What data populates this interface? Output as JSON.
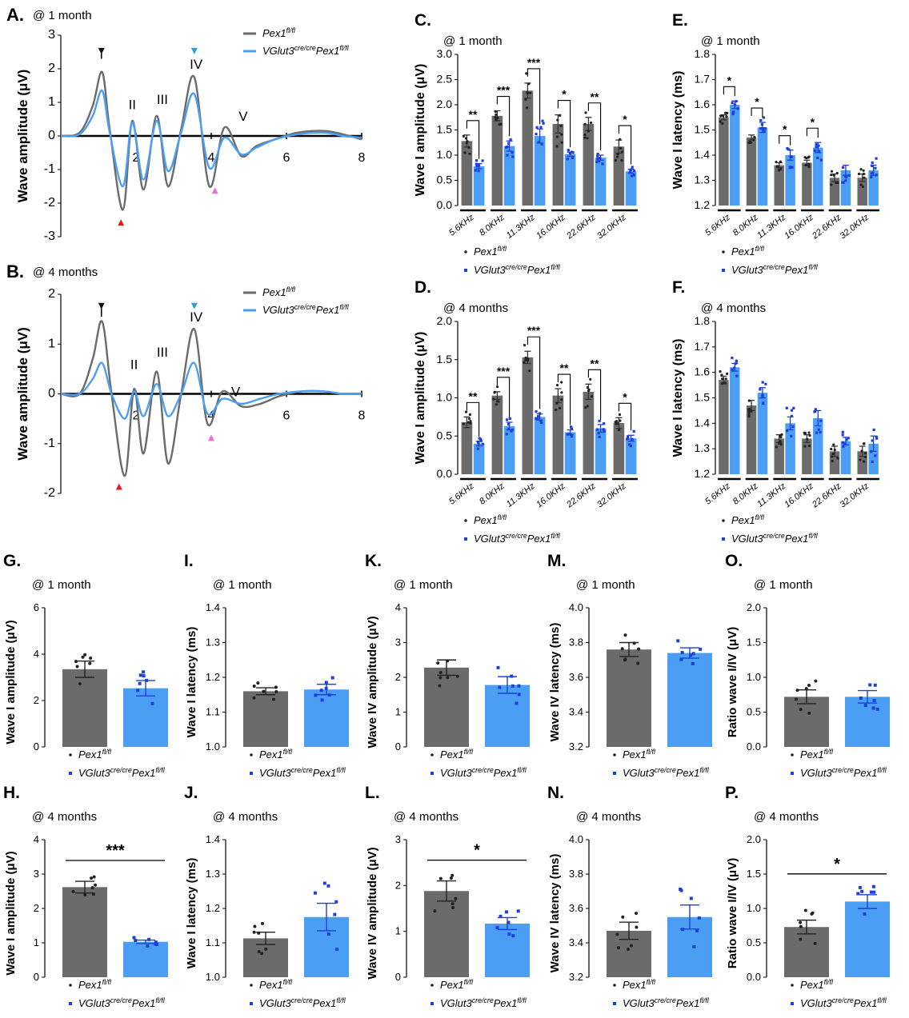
{
  "colors": {
    "control": "#6b6b6b",
    "mutant": "#4a9ff5",
    "mutant_dot": "#1f3fd8",
    "dot": "#222222",
    "red_marker": "#e01b1b",
    "pink_marker": "#e36fe0",
    "blue_marker": "#2ea0d8"
  },
  "legend": {
    "control_name": "Pex1",
    "control_sup": "fl/fl",
    "mutant_a": "VGlut3",
    "mutant_sup1": "cre/cre",
    "mutant_b": "Pex1",
    "mutant_sup2": "fl/fl"
  },
  "chart_data": [
    {
      "id": "A",
      "type": "line",
      "panel_label": "A.",
      "title": "@ 1 month",
      "ylabel": "Wave amplitude (μV)",
      "xlim": [
        0,
        8
      ],
      "ylim": [
        -3,
        3
      ],
      "xticks": [
        "2",
        "4",
        "6",
        "8"
      ],
      "yticks": [
        "-3",
        "-2",
        "-1",
        "0",
        "1",
        "2",
        "3"
      ],
      "peak_labels": [
        "I",
        "II",
        "III",
        "IV",
        "V"
      ],
      "series": [
        {
          "name": "Pex1 fl/fl",
          "x": [
            0,
            0.5,
            0.85,
            1.1,
            1.3,
            1.65,
            1.9,
            2.2,
            2.55,
            2.85,
            3.2,
            3.55,
            3.95,
            4.35,
            4.8,
            5.2,
            5.7,
            6.3,
            7.0,
            7.5,
            8
          ],
          "y": [
            0,
            0.1,
            0.9,
            1.9,
            0.2,
            -2.2,
            0.45,
            -1.6,
            0.6,
            -1.5,
            0.2,
            1.75,
            -1.5,
            0.25,
            -0.6,
            -0.3,
            -0.1,
            0.1,
            0.15,
            0.05,
            -0.1
          ]
        },
        {
          "name": "VGlut3 cre/cre Pex1 fl/fl",
          "x": [
            0,
            0.5,
            0.85,
            1.1,
            1.3,
            1.65,
            1.9,
            2.2,
            2.55,
            2.85,
            3.2,
            3.55,
            3.95,
            4.35,
            4.8,
            5.2,
            5.7,
            6.3,
            7.0,
            7.5,
            8
          ],
          "y": [
            0,
            0.05,
            0.6,
            1.35,
            0.1,
            -1.5,
            0.4,
            -1.3,
            0.45,
            -1.05,
            0.1,
            1.25,
            -0.95,
            -0.05,
            -0.55,
            -0.35,
            -0.1,
            0.05,
            0.1,
            0.0,
            -0.05
          ]
        }
      ]
    },
    {
      "id": "B",
      "type": "line",
      "panel_label": "B.",
      "title": "@ 4 months",
      "ylabel": "Wave amplitude (μV)",
      "xlim": [
        0,
        8
      ],
      "ylim": [
        -2,
        2
      ],
      "xticks": [
        "2",
        "4",
        "6",
        "8"
      ],
      "yticks": [
        "-2",
        "-1",
        "0",
        "1",
        "2"
      ],
      "peak_labels": [
        "I",
        "II",
        "III",
        "IV",
        "V"
      ],
      "series": [
        {
          "name": "Pex1 fl/fl",
          "x": [
            0,
            0.5,
            0.85,
            1.1,
            1.35,
            1.7,
            1.95,
            2.2,
            2.55,
            2.85,
            3.2,
            3.55,
            3.9,
            4.3,
            4.8,
            5.3,
            5.8,
            6.4,
            7.0,
            7.5,
            8
          ],
          "y": [
            0,
            0.0,
            0.7,
            1.45,
            0.0,
            -1.65,
            0.1,
            -1.2,
            0.45,
            -1.4,
            0.0,
            1.3,
            -0.6,
            0.05,
            -0.25,
            -0.2,
            -0.05,
            0.05,
            0.05,
            0.0,
            0.0
          ]
        },
        {
          "name": "VGlut3 cre/cre Pex1 fl/fl",
          "x": [
            0,
            0.5,
            0.85,
            1.1,
            1.35,
            1.7,
            1.95,
            2.2,
            2.55,
            2.85,
            3.2,
            3.55,
            3.9,
            4.3,
            4.8,
            5.3,
            5.8,
            6.4,
            7.0,
            7.5,
            8
          ],
          "y": [
            0,
            0.0,
            0.3,
            0.62,
            0.0,
            -0.5,
            0.05,
            -0.45,
            0.2,
            -0.45,
            0.0,
            0.62,
            -0.4,
            -0.1,
            -0.2,
            -0.1,
            0.0,
            0.05,
            0.05,
            0.0,
            0.0
          ]
        }
      ]
    },
    {
      "id": "C",
      "type": "bar",
      "panel_label": "C.",
      "title": "@ 1 month",
      "ylabel": "Wave I amplitude (μV)",
      "ylim": [
        0,
        3
      ],
      "yticks": [
        "0.0",
        "0.5",
        "1.0",
        "1.5",
        "2.0",
        "2.5",
        "3.0"
      ],
      "categories": [
        "5.6KHz",
        "8.0KHz",
        "11.3KHz",
        "16.0KHz",
        "22.6KHz",
        "32.0KHz"
      ],
      "series": [
        {
          "name": "Pex1 fl/fl",
          "values": [
            1.28,
            1.78,
            2.28,
            1.62,
            1.62,
            1.17
          ],
          "errors": [
            0.12,
            0.1,
            0.15,
            0.18,
            0.13,
            0.13
          ]
        },
        {
          "name": "VGlut3 cre/cre Pex1 fl/fl",
          "values": [
            0.78,
            1.18,
            1.38,
            1.02,
            0.95,
            0.68
          ],
          "errors": [
            0.05,
            0.1,
            0.14,
            0.04,
            0.05,
            0.04
          ]
        }
      ],
      "significance": [
        "**",
        "***",
        "***",
        "*",
        "**",
        "*"
      ]
    },
    {
      "id": "D",
      "type": "bar",
      "panel_label": "D.",
      "title": "@ 4 months",
      "ylabel": "Wave I amplitude (μV)",
      "ylim": [
        0,
        2
      ],
      "yticks": [
        "0.0",
        "0.5",
        "1.0",
        "1.5",
        "2.0"
      ],
      "categories": [
        "5.6KHz",
        "8.0KHz",
        "11.3KHz",
        "16.0KHz",
        "22.6KHz",
        "32.0KHz"
      ],
      "series": [
        {
          "name": "Pex1 fl/fl",
          "values": [
            0.68,
            1.03,
            1.53,
            1.03,
            1.08,
            0.67
          ],
          "errors": [
            0.07,
            0.05,
            0.08,
            0.09,
            0.1,
            0.07
          ]
        },
        {
          "name": "VGlut3 cre/cre Pex1 fl/fl",
          "values": [
            0.4,
            0.63,
            0.75,
            0.55,
            0.6,
            0.47
          ],
          "errors": [
            0.03,
            0.05,
            0.04,
            0.03,
            0.05,
            0.04
          ]
        }
      ],
      "significance": [
        "**",
        "***",
        "***",
        "**",
        "**",
        "*"
      ]
    },
    {
      "id": "E",
      "type": "bar",
      "panel_label": "E.",
      "title": "@ 1 month",
      "ylabel": "Wave I latency (ms)",
      "ylim": [
        1.2,
        1.8
      ],
      "yticks": [
        "1.2",
        "1.3",
        "1.4",
        "1.5",
        "1.6",
        "1.7",
        "1.8"
      ],
      "categories": [
        "5.6KHz",
        "8.0KHz",
        "11.3KHz",
        "16.0KHz",
        "22.6KHz",
        "32.0KHz"
      ],
      "series": [
        {
          "name": "Pex1 fl/fl",
          "values": [
            1.55,
            1.47,
            1.36,
            1.37,
            1.31,
            1.31
          ],
          "errors": [
            0.01,
            0.01,
            0.01,
            0.01,
            0.015,
            0.015
          ]
        },
        {
          "name": "VGlut3 cre/cre Pex1 fl/fl",
          "values": [
            1.6,
            1.51,
            1.4,
            1.43,
            1.34,
            1.34
          ],
          "errors": [
            0.015,
            0.02,
            0.02,
            0.02,
            0.02,
            0.02
          ]
        }
      ],
      "significance": [
        "*",
        "*",
        "*",
        "*",
        "",
        ""
      ]
    },
    {
      "id": "F",
      "type": "bar",
      "panel_label": "F.",
      "title": "@ 4 months",
      "ylabel": "Wave I latency (ms)",
      "ylim": [
        1.2,
        1.8
      ],
      "yticks": [
        "1.2",
        "1.3",
        "1.4",
        "1.5",
        "1.6",
        "1.7",
        "1.8"
      ],
      "categories": [
        "5.6KHz",
        "8.0KHz",
        "11.3KHz",
        "16.0KHz",
        "22.6KHz",
        "32.0KHz"
      ],
      "series": [
        {
          "name": "Pex1 fl/fl",
          "values": [
            1.57,
            1.47,
            1.34,
            1.34,
            1.29,
            1.29
          ],
          "errors": [
            0.015,
            0.02,
            0.015,
            0.015,
            0.02,
            0.02
          ]
        },
        {
          "name": "VGlut3 cre/cre Pex1 fl/fl",
          "values": [
            1.62,
            1.52,
            1.4,
            1.42,
            1.33,
            1.32
          ],
          "errors": [
            0.015,
            0.02,
            0.025,
            0.03,
            0.015,
            0.03
          ]
        }
      ],
      "significance": [
        "",
        "",
        "",
        "",
        "",
        ""
      ]
    },
    {
      "id": "G",
      "type": "bar",
      "panel_label": "G.",
      "title": "@ 1 month",
      "ylabel": "Wave I amplitude (μV)",
      "ylim": [
        0,
        6
      ],
      "yticks": [
        "0",
        "2",
        "4",
        "6"
      ],
      "values": [
        3.35,
        2.53
      ],
      "errors": [
        0.35,
        0.33
      ],
      "significance": ""
    },
    {
      "id": "I",
      "type": "bar",
      "panel_label": "I.",
      "title": "@ 1 month",
      "ylabel": "Wave I latency (ms)",
      "ylim": [
        1.0,
        1.4
      ],
      "yticks": [
        "1.0",
        "1.1",
        "1.2",
        "1.3",
        "1.4"
      ],
      "values": [
        1.16,
        1.165
      ],
      "errors": [
        0.01,
        0.015
      ],
      "significance": ""
    },
    {
      "id": "K",
      "type": "bar",
      "panel_label": "K.",
      "title": "@ 1 month",
      "ylabel": "Wave IV amplitude (μV)",
      "ylim": [
        0,
        4
      ],
      "yticks": [
        "0",
        "1",
        "2",
        "3",
        "4"
      ],
      "values": [
        2.28,
        1.78
      ],
      "errors": [
        0.22,
        0.24
      ],
      "significance": ""
    },
    {
      "id": "M",
      "type": "bar",
      "panel_label": "M.",
      "title": "@ 1 month",
      "ylabel": "Wave IV latency (ms)",
      "ylim": [
        3.2,
        4.0
      ],
      "yticks": [
        "3.2",
        "3.4",
        "3.6",
        "3.8",
        "4.0"
      ],
      "values": [
        3.76,
        3.74
      ],
      "errors": [
        0.04,
        0.03
      ],
      "significance": ""
    },
    {
      "id": "O",
      "type": "bar",
      "panel_label": "O.",
      "title": "@ 1 month",
      "ylabel": "Ratio wave I/IV (μV)",
      "ylim": [
        0,
        2
      ],
      "yticks": [
        "0.0",
        "0.5",
        "1.0",
        "1.5",
        "2.0"
      ],
      "values": [
        0.72,
        0.72
      ],
      "errors": [
        0.1,
        0.09
      ],
      "significance": ""
    },
    {
      "id": "H",
      "type": "bar",
      "panel_label": "H.",
      "title": "@ 4 months",
      "ylabel": "Wave I amplitude (μV)",
      "ylim": [
        0,
        4
      ],
      "yticks": [
        "0",
        "1",
        "2",
        "3",
        "4"
      ],
      "values": [
        2.62,
        1.03
      ],
      "errors": [
        0.17,
        0.05
      ],
      "significance": "***"
    },
    {
      "id": "J",
      "type": "bar",
      "panel_label": "J.",
      "title": "@ 4 months",
      "ylabel": "Wave I latency (ms)",
      "ylim": [
        1.0,
        1.4
      ],
      "yticks": [
        "1.0",
        "1.1",
        "1.2",
        "1.3",
        "1.4"
      ],
      "values": [
        1.113,
        1.175
      ],
      "errors": [
        0.018,
        0.04
      ],
      "significance": ""
    },
    {
      "id": "L",
      "type": "bar",
      "panel_label": "L.",
      "title": "@ 4 months",
      "ylabel": "Wave IV amplitude (μV)",
      "ylim": [
        0,
        3
      ],
      "yticks": [
        "0",
        "1",
        "2",
        "3"
      ],
      "values": [
        1.88,
        1.17
      ],
      "errors": [
        0.22,
        0.13
      ],
      "significance": "*"
    },
    {
      "id": "N",
      "type": "bar",
      "panel_label": "N.",
      "title": "@ 4 months",
      "ylabel": "Wave IV latency (ms)",
      "ylim": [
        3.2,
        4.0
      ],
      "yticks": [
        "3.2",
        "3.4",
        "3.6",
        "3.8",
        "4.0"
      ],
      "values": [
        3.47,
        3.55
      ],
      "errors": [
        0.05,
        0.07
      ],
      "significance": ""
    },
    {
      "id": "P",
      "type": "bar",
      "panel_label": "P.",
      "title": "@ 4 months",
      "ylabel": "Ratio wave I/IV (μV)",
      "ylim": [
        0,
        2
      ],
      "yticks": [
        "0.0",
        "0.5",
        "1.0",
        "1.5",
        "2.0"
      ],
      "values": [
        0.73,
        1.1
      ],
      "errors": [
        0.1,
        0.1
      ],
      "significance": "*"
    }
  ]
}
